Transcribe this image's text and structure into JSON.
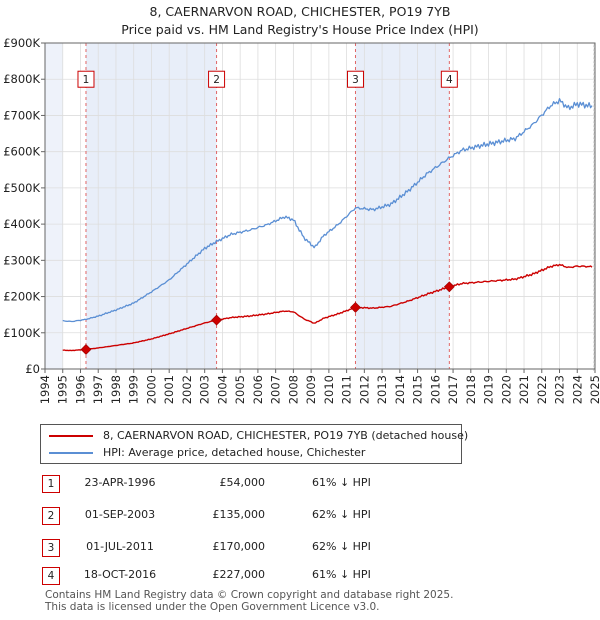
{
  "title": {
    "line1": "8, CAERNARVON ROAD, CHICHESTER, PO19 7YB",
    "line2": "Price paid vs. HM Land Registry's House Price Index (HPI)"
  },
  "chart_data": {
    "type": "line",
    "title": "8, CAERNARVON ROAD, CHICHESTER, PO19 7YB",
    "subtitle": "Price paid vs. HM Land Registry's House Price Index (HPI)",
    "xlabel": "",
    "ylabel": "",
    "xlim": [
      1994.0,
      2025.0
    ],
    "ylim": [
      0,
      900000
    ],
    "x_ticks": [
      1994,
      1995,
      1996,
      1997,
      1998,
      1999,
      2000,
      2001,
      2002,
      2003,
      2004,
      2005,
      2006,
      2007,
      2008,
      2009,
      2010,
      2011,
      2012,
      2013,
      2014,
      2015,
      2016,
      2017,
      2018,
      2019,
      2020,
      2021,
      2022,
      2023,
      2024,
      2025
    ],
    "y_ticks": [
      {
        "value": 0,
        "label": "£0"
      },
      {
        "value": 100000,
        "label": "£100K"
      },
      {
        "value": 200000,
        "label": "£200K"
      },
      {
        "value": 300000,
        "label": "£300K"
      },
      {
        "value": 400000,
        "label": "£400K"
      },
      {
        "value": 500000,
        "label": "£500K"
      },
      {
        "value": 600000,
        "label": "£600K"
      },
      {
        "value": 700000,
        "label": "£700K"
      },
      {
        "value": 800000,
        "label": "£800K"
      },
      {
        "value": 900000,
        "label": "£900K"
      }
    ],
    "data_start": 1995.0,
    "data_end": 2024.9,
    "shaded_periods": [
      [
        1996.31,
        2003.67
      ],
      [
        2011.5,
        2016.79
      ]
    ],
    "series": [
      {
        "name": "8, CAERNARVON ROAD, CHICHESTER, PO19 7YB (detached house)",
        "color": "#cc0000",
        "points": [
          [
            1995.0,
            52000
          ],
          [
            1995.5,
            51000
          ],
          [
            1996.31,
            54000
          ],
          [
            1997.0,
            58000
          ],
          [
            1998.0,
            65000
          ],
          [
            1999.0,
            72000
          ],
          [
            2000.0,
            83000
          ],
          [
            2001.0,
            97000
          ],
          [
            2002.0,
            112000
          ],
          [
            2003.0,
            127000
          ],
          [
            2003.67,
            135000
          ],
          [
            2004.5,
            142000
          ],
          [
            2005.5,
            146000
          ],
          [
            2006.5,
            152000
          ],
          [
            2007.5,
            160000
          ],
          [
            2008.0,
            158000
          ],
          [
            2008.6,
            138000
          ],
          [
            2009.2,
            126000
          ],
          [
            2009.7,
            140000
          ],
          [
            2010.5,
            152000
          ],
          [
            2011.5,
            170000
          ],
          [
            2012.5,
            168000
          ],
          [
            2013.5,
            173000
          ],
          [
            2014.5,
            188000
          ],
          [
            2015.5,
            206000
          ],
          [
            2016.79,
            227000
          ],
          [
            2017.5,
            236000
          ],
          [
            2018.5,
            240000
          ],
          [
            2019.5,
            244000
          ],
          [
            2020.5,
            248000
          ],
          [
            2021.5,
            262000
          ],
          [
            2022.5,
            283000
          ],
          [
            2023.0,
            288000
          ],
          [
            2023.5,
            280000
          ],
          [
            2024.0,
            284000
          ],
          [
            2024.5,
            283000
          ],
          [
            2024.9,
            282000
          ]
        ]
      },
      {
        "name": "HPI: Average price, detached house, Chichester",
        "color": "#5b8fd4",
        "points": [
          [
            1995.0,
            133000
          ],
          [
            1995.5,
            131000
          ],
          [
            1996.31,
            137000
          ],
          [
            1997.0,
            146000
          ],
          [
            1998.0,
            163000
          ],
          [
            1999.0,
            182000
          ],
          [
            2000.0,
            213000
          ],
          [
            2001.0,
            246000
          ],
          [
            2002.0,
            290000
          ],
          [
            2003.0,
            333000
          ],
          [
            2003.67,
            352000
          ],
          [
            2004.5,
            372000
          ],
          [
            2005.5,
            383000
          ],
          [
            2006.5,
            398000
          ],
          [
            2007.5,
            420000
          ],
          [
            2008.0,
            412000
          ],
          [
            2008.6,
            362000
          ],
          [
            2009.2,
            335000
          ],
          [
            2009.7,
            368000
          ],
          [
            2010.5,
            398000
          ],
          [
            2011.5,
            445000
          ],
          [
            2012.5,
            440000
          ],
          [
            2013.5,
            455000
          ],
          [
            2014.5,
            493000
          ],
          [
            2015.5,
            538000
          ],
          [
            2016.79,
            583000
          ],
          [
            2017.5,
            604000
          ],
          [
            2018.5,
            616000
          ],
          [
            2019.5,
            626000
          ],
          [
            2020.5,
            636000
          ],
          [
            2021.5,
            675000
          ],
          [
            2022.5,
            727000
          ],
          [
            2023.0,
            741000
          ],
          [
            2023.5,
            720000
          ],
          [
            2024.0,
            732000
          ],
          [
            2024.5,
            728000
          ],
          [
            2024.9,
            725000
          ]
        ]
      }
    ],
    "sales": [
      {
        "num": "1",
        "x": 1996.31,
        "price": 54000
      },
      {
        "num": "2",
        "x": 2003.67,
        "price": 135000
      },
      {
        "num": "3",
        "x": 2011.5,
        "price": 170000
      },
      {
        "num": "4",
        "x": 2016.79,
        "price": 227000
      }
    ],
    "marker_label_value": 800000
  },
  "legend": {
    "items": [
      {
        "label": "8, CAERNARVON ROAD, CHICHESTER, PO19 7YB (detached house)",
        "color": "#cc0000"
      },
      {
        "label": "HPI: Average price, detached house, Chichester",
        "color": "#5b8fd4"
      }
    ]
  },
  "sales_table": [
    {
      "num": "1",
      "date": "23-APR-1996",
      "price": "£54,000",
      "hpi": "61% ↓ HPI"
    },
    {
      "num": "2",
      "date": "01-SEP-2003",
      "price": "£135,000",
      "hpi": "62% ↓ HPI"
    },
    {
      "num": "3",
      "date": "01-JUL-2011",
      "price": "£170,000",
      "hpi": "62% ↓ HPI"
    },
    {
      "num": "4",
      "date": "18-OCT-2016",
      "price": "£227,000",
      "hpi": "61% ↓ HPI"
    }
  ],
  "footer": {
    "line1": "Contains HM Land Registry data © Crown copyright and database right 2025.",
    "line2": "This data is licensed under the Open Government Licence v3.0."
  }
}
